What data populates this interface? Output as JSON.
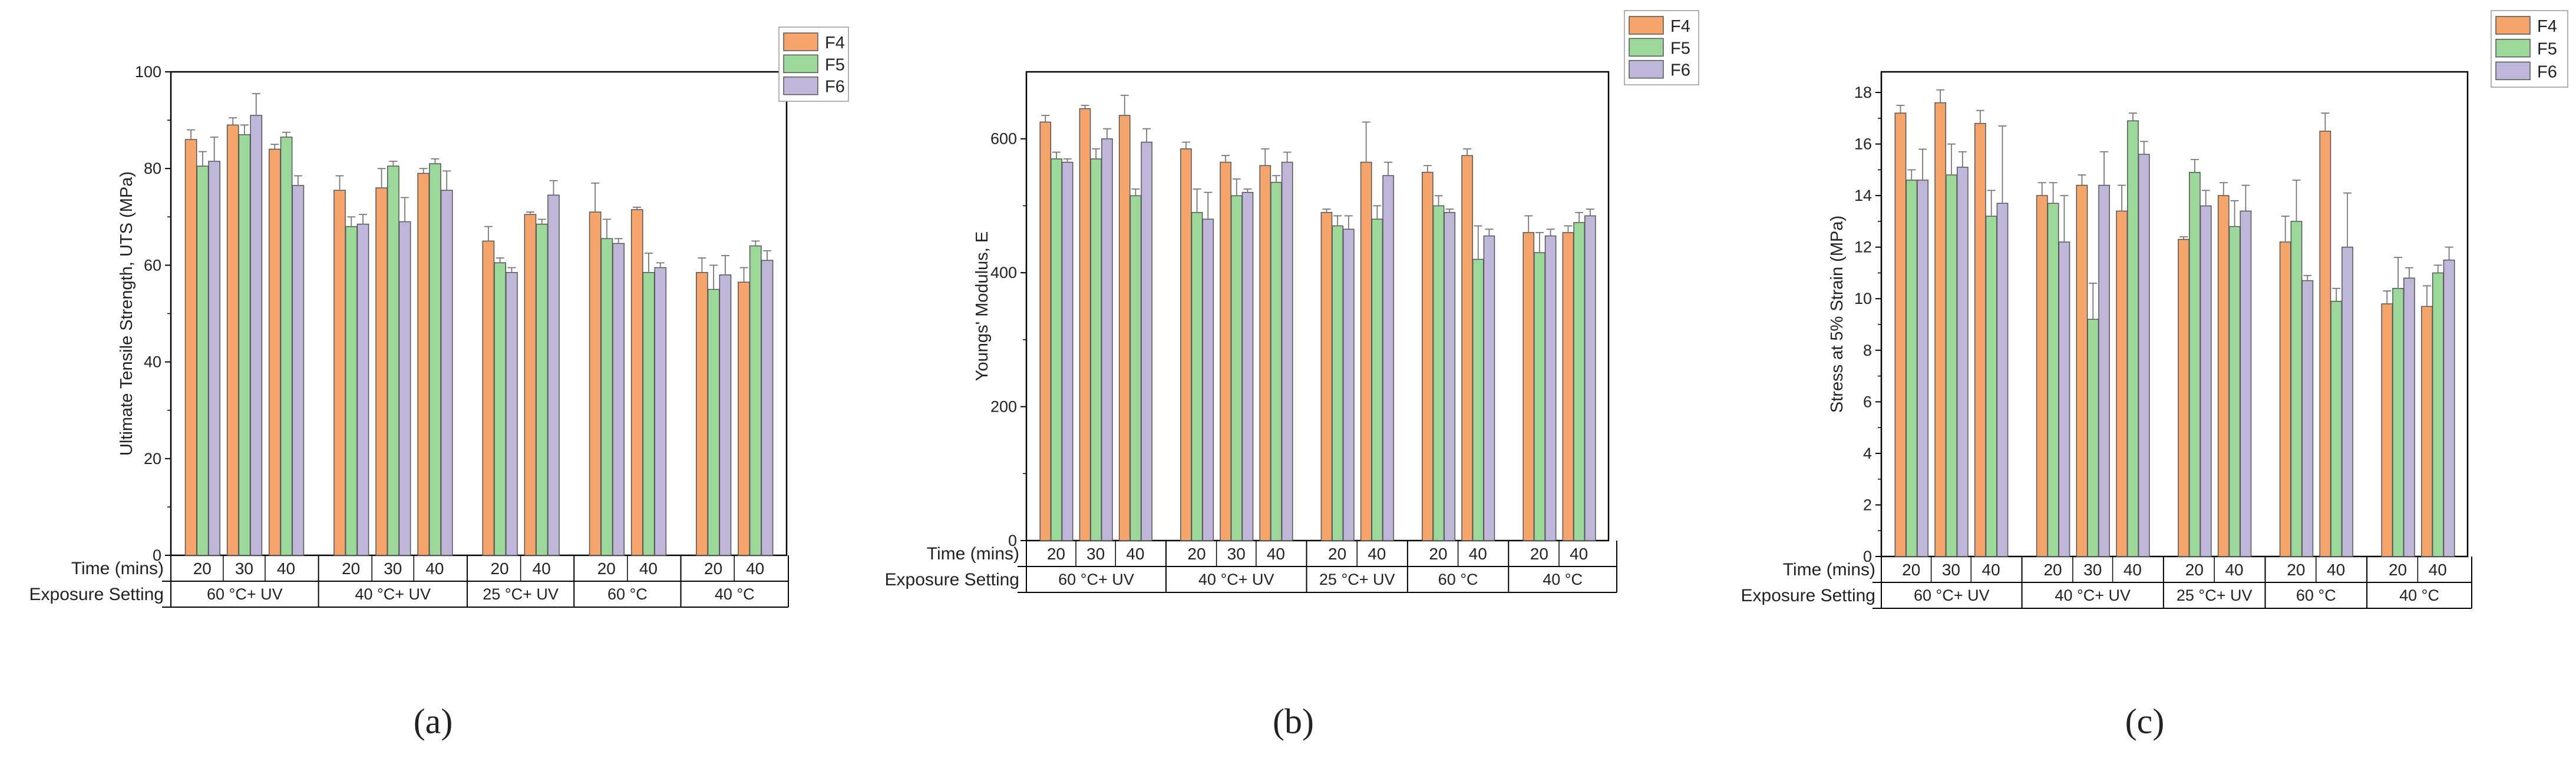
{
  "figure": {
    "panel_labels": [
      "(a)",
      "(b)",
      "(c)"
    ],
    "series_colors": {
      "F4": "#F5A46B",
      "F5": "#9DD89B",
      "F6": "#BFB6DA"
    }
  },
  "chart_data": [
    {
      "type": "bar",
      "panel": "(a)",
      "ylabel": "Ultimate Tensile Strength, UTS (MPa)",
      "ylim": [
        0,
        100
      ],
      "yticks": [
        0,
        20,
        40,
        60,
        80,
        100
      ],
      "row_label_time": "Time (mins)",
      "row_label_setting": "Exposure Setting",
      "groups": [
        {
          "setting": "60 °C+ UV",
          "times": [
            "20",
            "30",
            "40"
          ]
        },
        {
          "setting": "40 °C+ UV",
          "times": [
            "20",
            "30",
            "40"
          ]
        },
        {
          "setting": "25 °C+ UV",
          "times": [
            "20",
            "40"
          ]
        },
        {
          "setting": "60 °C",
          "times": [
            "20",
            "40"
          ]
        },
        {
          "setting": "40 °C",
          "times": [
            "20",
            "40"
          ]
        }
      ],
      "legend": [
        "F4",
        "F5",
        "F6"
      ],
      "series": [
        {
          "name": "F4",
          "values": [
            86,
            89,
            84,
            75.5,
            76,
            79,
            65,
            70.5,
            71,
            71.5,
            58.5,
            56.5
          ],
          "errors": [
            2,
            1.5,
            1,
            3,
            4,
            1,
            3,
            0.5,
            6,
            0.5,
            3,
            3
          ]
        },
        {
          "name": "F5",
          "values": [
            80.5,
            87,
            86.5,
            68,
            80.5,
            81,
            60.5,
            68.5,
            65.5,
            58.5,
            55,
            64
          ],
          "errors": [
            3,
            2,
            1,
            2,
            1,
            1,
            1,
            1,
            4,
            4,
            5,
            1
          ]
        },
        {
          "name": "F6",
          "values": [
            81.5,
            91,
            76.5,
            68.5,
            69,
            75.5,
            58.5,
            74.5,
            64.5,
            59.5,
            58,
            61
          ],
          "errors": [
            5,
            4.5,
            2,
            2,
            5,
            4,
            1,
            3,
            1,
            1,
            4,
            2
          ]
        }
      ]
    },
    {
      "type": "bar",
      "panel": "(b)",
      "ylabel": "Youngs' Modulus, E",
      "ylim": [
        0,
        700
      ],
      "yticks": [
        0,
        200,
        400,
        600
      ],
      "row_label_time": "Time (mins)",
      "row_label_setting": "Exposure Setting",
      "groups": [
        {
          "setting": "60 °C+ UV",
          "times": [
            "20",
            "30",
            "40"
          ]
        },
        {
          "setting": "40 °C+ UV",
          "times": [
            "20",
            "30",
            "40"
          ]
        },
        {
          "setting": "25 °C+ UV",
          "times": [
            "20",
            "40"
          ]
        },
        {
          "setting": "60 °C",
          "times": [
            "20",
            "40"
          ]
        },
        {
          "setting": "40 °C",
          "times": [
            "20",
            "40"
          ]
        }
      ],
      "legend": [
        "F4",
        "F5",
        "F6"
      ],
      "series": [
        {
          "name": "F4",
          "values": [
            625,
            645,
            635,
            585,
            565,
            560,
            490,
            565,
            550,
            575,
            460,
            460
          ],
          "errors": [
            10,
            5,
            30,
            10,
            10,
            25,
            5,
            60,
            10,
            10,
            25,
            10
          ]
        },
        {
          "name": "F5",
          "values": [
            570,
            570,
            515,
            490,
            515,
            535,
            470,
            480,
            500,
            420,
            430,
            475
          ],
          "errors": [
            10,
            15,
            10,
            35,
            25,
            10,
            15,
            20,
            15,
            50,
            30,
            15
          ]
        },
        {
          "name": "F6",
          "values": [
            565,
            600,
            595,
            480,
            520,
            565,
            465,
            545,
            490,
            455,
            455,
            485
          ],
          "errors": [
            5,
            15,
            20,
            40,
            5,
            15,
            20,
            20,
            5,
            10,
            10,
            10
          ]
        }
      ]
    },
    {
      "type": "bar",
      "panel": "(c)",
      "ylabel": "Stress at 5% Strain (MPa)",
      "ylim": [
        0,
        18.8
      ],
      "yticks": [
        0,
        2,
        4,
        6,
        8,
        10,
        12,
        14,
        16,
        18
      ],
      "row_label_time": "Time (mins)",
      "row_label_setting": "Exposure Setting",
      "groups": [
        {
          "setting": "60 °C+ UV",
          "times": [
            "20",
            "30",
            "40"
          ]
        },
        {
          "setting": "40 °C+ UV",
          "times": [
            "20",
            "30",
            "40"
          ]
        },
        {
          "setting": "25 °C+ UV",
          "times": [
            "20",
            "40"
          ]
        },
        {
          "setting": "60 °C",
          "times": [
            "20",
            "40"
          ]
        },
        {
          "setting": "40 °C",
          "times": [
            "20",
            "40"
          ]
        }
      ],
      "legend": [
        "F4",
        "F5",
        "F6"
      ],
      "series": [
        {
          "name": "F4",
          "values": [
            17.2,
            17.6,
            16.8,
            14.0,
            14.4,
            13.4,
            12.3,
            14.0,
            12.2,
            16.5,
            9.8,
            9.7
          ],
          "errors": [
            0.3,
            0.5,
            0.5,
            0.5,
            0.4,
            1.0,
            0.1,
            0.5,
            1.0,
            0.7,
            0.5,
            0.8
          ]
        },
        {
          "name": "F5",
          "values": [
            14.6,
            14.8,
            13.2,
            13.7,
            9.2,
            16.9,
            14.9,
            12.8,
            13.0,
            9.9,
            10.4,
            11.0
          ],
          "errors": [
            0.4,
            1.2,
            1.0,
            0.8,
            1.4,
            0.3,
            0.5,
            1.0,
            1.6,
            0.5,
            1.2,
            0.3
          ]
        },
        {
          "name": "F6",
          "values": [
            14.6,
            15.1,
            13.7,
            12.2,
            14.4,
            15.6,
            13.6,
            13.4,
            10.7,
            12.0,
            10.8,
            11.5
          ],
          "errors": [
            1.2,
            0.6,
            3.0,
            1.8,
            1.3,
            0.5,
            0.6,
            1.0,
            0.2,
            2.1,
            0.4,
            0.5
          ]
        }
      ]
    }
  ]
}
